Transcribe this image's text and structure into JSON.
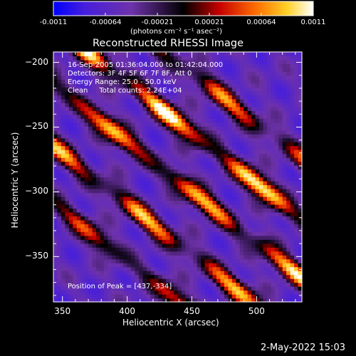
{
  "colorbar": {
    "ticks": [
      "-0.0011",
      "-0.00064",
      "-0.00021",
      "0.00021",
      "0.00064",
      "0.0011"
    ],
    "unit_label": "(photons cm⁻² s⁻¹ asec⁻²)",
    "min": -0.0011,
    "max": 0.0011
  },
  "chart_data": {
    "type": "heatmap",
    "title": "Reconstructed RHESSI Image",
    "xlabel": "Heliocentric X (arcsec)",
    "ylabel": "Heliocentric Y (arcsec)",
    "xlim": [
      343,
      535
    ],
    "ylim": [
      -385,
      -192
    ],
    "xticks": [
      350,
      400,
      450,
      500
    ],
    "yticks": [
      -200,
      -250,
      -300,
      -350
    ],
    "colormap": "RHESSI (blue - purple - black - red - orange - yellow - white)",
    "annotations": {
      "time_range": "16-Sep-2005 01:36:04.000 to 01:42:04.000",
      "detectors": "Detectors: 3F 4F 5F 6F 7F 8F, Att 0",
      "energy_range": "Energy Range: 25.0 - 50.0 keV",
      "clean_counts": "Clean     Total counts: 2.24E+04",
      "peak_position": "Position of Peak = [437,-334]"
    },
    "ridges": [
      {
        "intercept": -244,
        "peak": 1.0
      },
      {
        "intercept": -290,
        "peak": 0.85
      },
      {
        "intercept": -338,
        "peak": 0.8
      },
      {
        "intercept": -382,
        "peak": 0.6
      },
      {
        "intercept": -198,
        "peak": 0.7
      }
    ],
    "ridge_slope": 0.78
  },
  "footer": {
    "date": "2-May-2022 15:03"
  }
}
